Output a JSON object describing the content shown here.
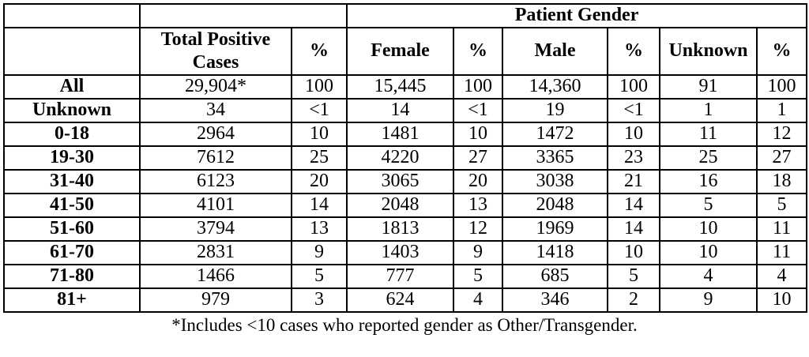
{
  "page": {
    "background_color": "#ffffff",
    "text_color": "#000000",
    "border_color": "#000000"
  },
  "table": {
    "spanner_header": "Patient Gender",
    "column_headers": [
      "Total Positive Cases",
      "%",
      "Female",
      "%",
      "Male",
      "%",
      "Unknown",
      "%"
    ],
    "rows": [
      {
        "label": "All",
        "cells": [
          "29,904*",
          "100",
          "15,445",
          "100",
          "14,360",
          "100",
          "91",
          "100"
        ]
      },
      {
        "label": "Unknown",
        "cells": [
          "34",
          "<1",
          "14",
          "<1",
          "19",
          "<1",
          "1",
          "1"
        ]
      },
      {
        "label": "0-18",
        "cells": [
          "2964",
          "10",
          "1481",
          "10",
          "1472",
          "10",
          "11",
          "12"
        ]
      },
      {
        "label": "19-30",
        "cells": [
          "7612",
          "25",
          "4220",
          "27",
          "3365",
          "23",
          "25",
          "27"
        ]
      },
      {
        "label": "31-40",
        "cells": [
          "6123",
          "20",
          "3065",
          "20",
          "3038",
          "21",
          "16",
          "18"
        ]
      },
      {
        "label": "41-50",
        "cells": [
          "4101",
          "14",
          "2048",
          "13",
          "2048",
          "14",
          "5",
          "5"
        ]
      },
      {
        "label": "51-60",
        "cells": [
          "3794",
          "13",
          "1813",
          "12",
          "1969",
          "14",
          "10",
          "11"
        ]
      },
      {
        "label": "61-70",
        "cells": [
          "2831",
          "9",
          "1403",
          "9",
          "1418",
          "10",
          "10",
          "11"
        ]
      },
      {
        "label": "71-80",
        "cells": [
          "1466",
          "5",
          "777",
          "5",
          "685",
          "5",
          "4",
          "4"
        ]
      },
      {
        "label": "81+",
        "cells": [
          "979",
          "3",
          "624",
          "4",
          "346",
          "2",
          "9",
          "10"
        ]
      }
    ],
    "footnote": "*Includes <10 cases who reported gender as Other/Transgender."
  }
}
